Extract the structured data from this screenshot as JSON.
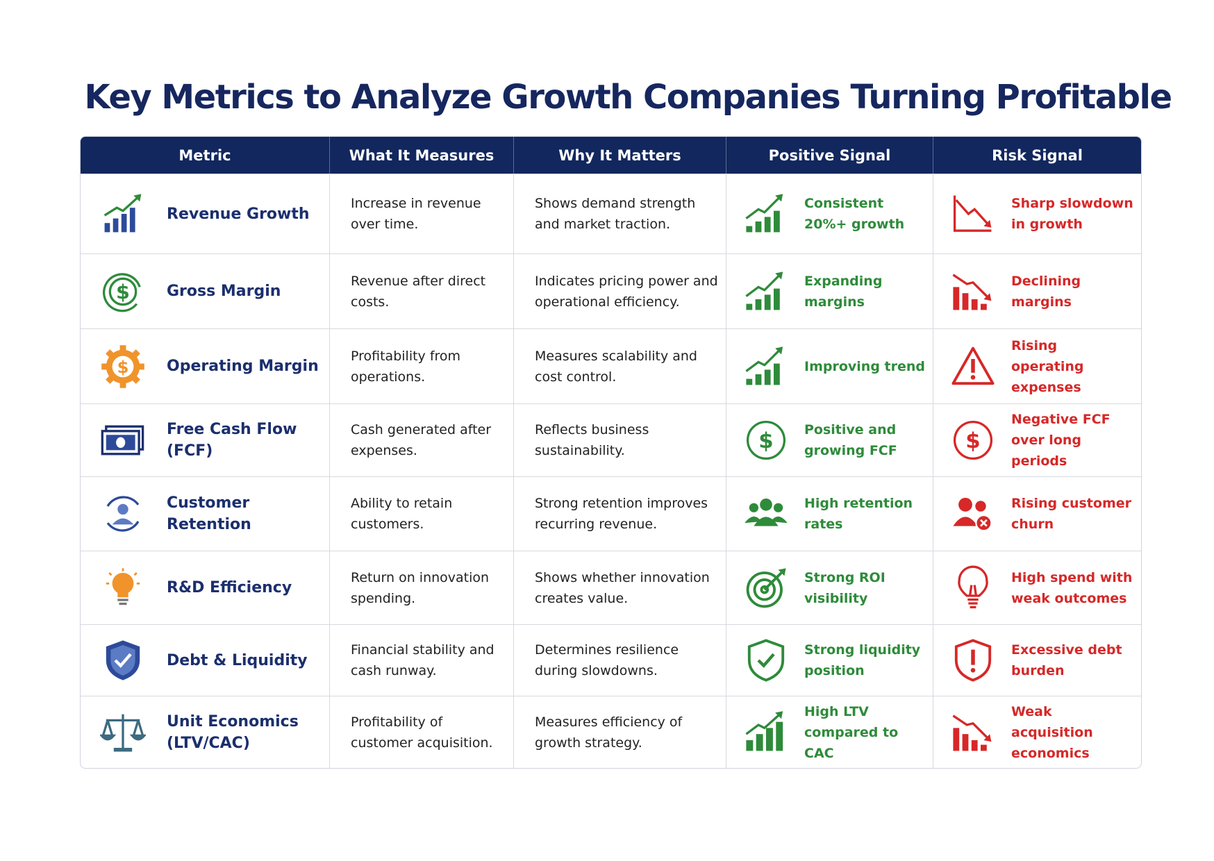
{
  "header": {
    "title": "Key Metrics to Analyze Growth Companies Turning Profitable"
  },
  "table": {
    "columns": [
      "Metric",
      "What It Measures",
      "Why It Matters",
      "Positive Signal",
      "Risk Signal"
    ],
    "rows": [
      [
        "Revenue Growth",
        "Increase in revenue over time.",
        "Shows demand strength and market traction.",
        "Consistent 20%+ growth",
        "Sharp slowdown in growth"
      ],
      [
        "Gross Margin",
        "Revenue after direct costs.",
        "Indicates pricing power and operational efficiency.",
        "Expanding margins",
        "Declining margins"
      ],
      [
        "Operating Margin",
        "Profitability from operations.",
        "Measures scalability and cost control.",
        "Improving trend",
        "Rising operating expenses"
      ],
      [
        "Free Cash Flow (FCF)",
        "Cash generated after expenses.",
        "Reflects business sustainability.",
        "Positive and growing FCF",
        "Negative FCF over long periods"
      ],
      [
        "Customer Retention",
        "Ability to retain customers.",
        "Strong retention improves recurring revenue.",
        "High retention rates",
        "Rising customer churn"
      ],
      [
        "R&D Efficiency",
        "Return on innovation spending.",
        "Shows whether innovation creates value.",
        "Strong ROI visibility",
        "High spend with weak outcomes"
      ],
      [
        "Debt & Liquidity",
        "Financial stability and cash runway.",
        "Determines resilience during slowdowns.",
        "Strong liquidity position",
        "Excessive debt burden"
      ],
      [
        "Unit Economics (LTV/CAC)",
        "Profitability of customer acquisition.",
        "Measures efficiency of growth strategy.",
        "High LTV compared to CAC",
        "Weak acquisition economics"
      ]
    ]
  }
}
